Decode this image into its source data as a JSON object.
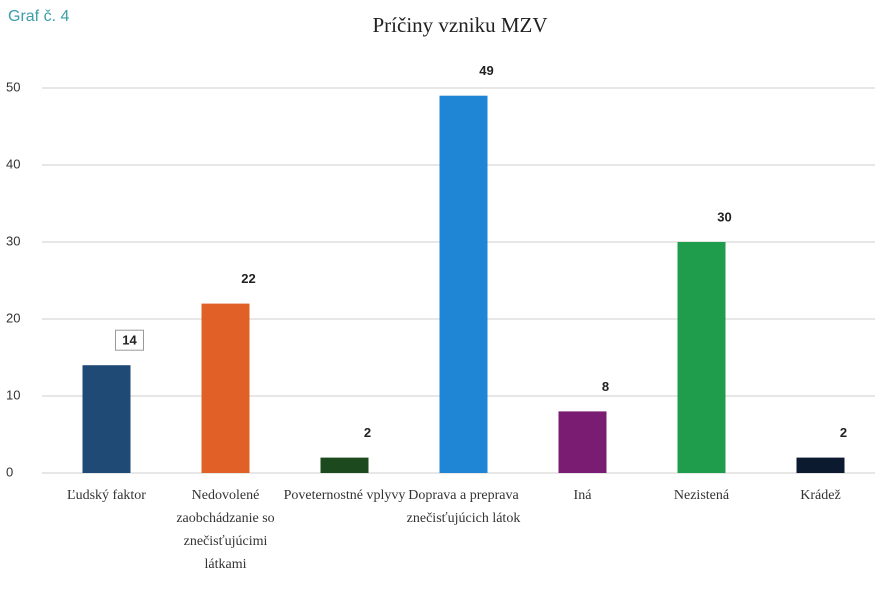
{
  "caption": "Graf č. 4",
  "chart_data": {
    "type": "bar",
    "title": "Príčiny vzniku MZV",
    "categories": [
      "Ľudský faktor",
      "Nedovolené zaobchádzanie so znečisťujúcimi látkami",
      "Poveternostné vplyvy",
      "Doprava a preprava znečisťujúcich látok",
      "Iná",
      "Nezistená",
      "Krádež"
    ],
    "values": [
      14,
      22,
      2,
      49,
      8,
      30,
      2
    ],
    "colors": [
      "#1f4a76",
      "#e06028",
      "#1c4a1e",
      "#1f86d6",
      "#7a1c72",
      "#1f9c4c",
      "#0c1a30"
    ],
    "ylim": [
      0,
      50
    ],
    "yticks": [
      0,
      10,
      20,
      30,
      40,
      50
    ],
    "grid": true
  }
}
